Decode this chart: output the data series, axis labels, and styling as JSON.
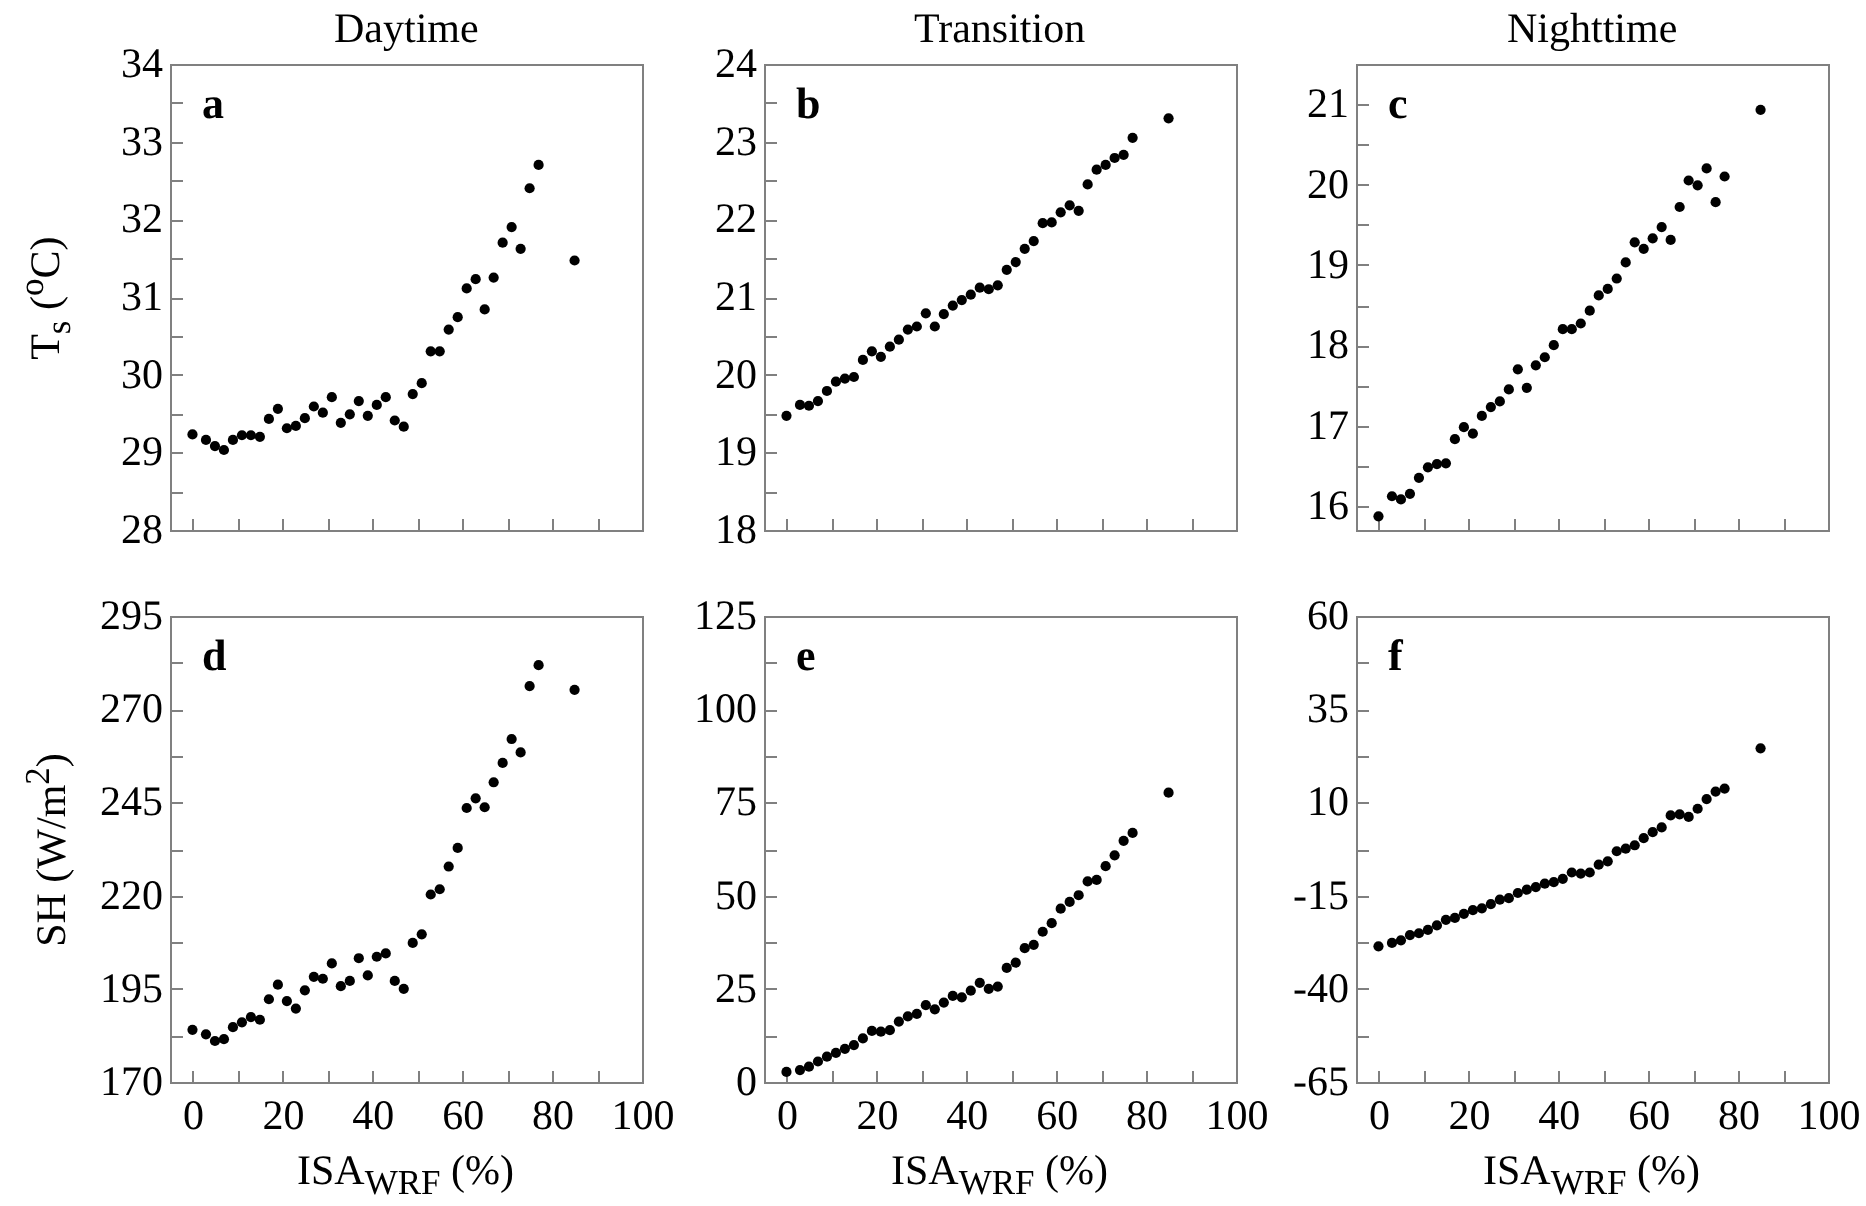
{
  "chart_data": [
    {
      "type": "scatter",
      "title": "Daytime",
      "ylabel": "T$_{s}$ ($^{o}$C)",
      "annotations": [
        "a"
      ],
      "marker": "circle",
      "tick_labels": "y",
      "xlim": [
        -5,
        100
      ],
      "xticks": [
        0,
        {
          "value": 10,
          "label": null
        },
        20,
        {
          "value": 30,
          "label": null
        },
        40,
        {
          "value": 50,
          "label": null
        },
        60,
        {
          "value": 70,
          "label": null
        },
        80,
        {
          "value": 90,
          "label": null
        },
        100
      ],
      "ylim": [
        28,
        34
      ],
      "yticks": [
        28,
        {
          "value": 28.5,
          "label": null
        },
        29,
        {
          "value": 29.5,
          "label": null
        },
        30,
        {
          "value": 30.5,
          "label": null
        },
        31,
        {
          "value": 31.5,
          "label": null
        },
        32,
        {
          "value": 32.5,
          "label": null
        },
        33,
        {
          "value": 33.5,
          "label": null
        },
        34
      ],
      "x": [
        0,
        3,
        5,
        7,
        9,
        11,
        13,
        15,
        17,
        19,
        21,
        23,
        25,
        27,
        29,
        31,
        33,
        35,
        37,
        39,
        41,
        43,
        45,
        47,
        49,
        51,
        53,
        55,
        57,
        59,
        61,
        63,
        65,
        67,
        69,
        71,
        73,
        75,
        77,
        85
      ],
      "series": [
        {
          "color": "#000000",
          "values": [
            29.23,
            29.16,
            29.08,
            29.03,
            29.16,
            29.22,
            29.22,
            29.2,
            29.43,
            29.56,
            29.31,
            29.34,
            29.44,
            29.59,
            29.51,
            29.71,
            29.38,
            29.49,
            29.66,
            29.47,
            29.61,
            29.71,
            29.41,
            29.33,
            29.75,
            29.89,
            30.3,
            30.3,
            30.58,
            30.74,
            31.11,
            31.23,
            30.84,
            31.25,
            31.7,
            31.9,
            31.62,
            32.4,
            32.7,
            31.47
          ]
        }
      ]
    },
    {
      "type": "scatter",
      "title": "Transition",
      "annotations": [
        "b"
      ],
      "marker": "circle",
      "tick_labels": "y",
      "xlim": [
        -5,
        100
      ],
      "xticks": [
        0,
        {
          "value": 10,
          "label": null
        },
        20,
        {
          "value": 30,
          "label": null
        },
        40,
        {
          "value": 50,
          "label": null
        },
        60,
        {
          "value": 70,
          "label": null
        },
        80,
        {
          "value": 90,
          "label": null
        },
        100
      ],
      "ylim": [
        18,
        24
      ],
      "yticks": [
        18,
        {
          "value": 18.5,
          "label": null
        },
        19,
        {
          "value": 19.5,
          "label": null
        },
        20,
        {
          "value": 20.5,
          "label": null
        },
        21,
        {
          "value": 21.5,
          "label": null
        },
        22,
        {
          "value": 22.5,
          "label": null
        },
        23,
        {
          "value": 23.5,
          "label": null
        },
        24
      ],
      "x": [
        0,
        3,
        5,
        7,
        9,
        11,
        13,
        15,
        17,
        19,
        21,
        23,
        25,
        27,
        29,
        31,
        33,
        35,
        37,
        39,
        41,
        43,
        45,
        47,
        49,
        51,
        53,
        55,
        57,
        59,
        61,
        63,
        65,
        67,
        69,
        71,
        73,
        75,
        77,
        85
      ],
      "series": [
        {
          "color": "#000000",
          "values": [
            19.47,
            19.61,
            19.6,
            19.66,
            19.79,
            19.91,
            19.95,
            19.97,
            20.19,
            20.3,
            20.23,
            20.36,
            20.45,
            20.58,
            20.62,
            20.79,
            20.62,
            20.78,
            20.89,
            20.96,
            21.03,
            21.12,
            21.1,
            21.15,
            21.35,
            21.45,
            21.62,
            21.72,
            21.95,
            21.96,
            22.09,
            22.18,
            22.11,
            22.45,
            22.64,
            22.7,
            22.79,
            22.83,
            23.05,
            23.3
          ]
        }
      ]
    },
    {
      "type": "scatter",
      "title": "Nighttime",
      "annotations": [
        "c"
      ],
      "marker": "circle",
      "tick_labels": "y",
      "xlim": [
        -5,
        100
      ],
      "xticks": [
        0,
        {
          "value": 10,
          "label": null
        },
        20,
        {
          "value": 30,
          "label": null
        },
        40,
        {
          "value": 50,
          "label": null
        },
        60,
        {
          "value": 70,
          "label": null
        },
        80,
        {
          "value": 90,
          "label": null
        },
        100
      ],
      "ylim": [
        15.7,
        21.5
      ],
      "yticks": [
        16,
        {
          "value": 16.5,
          "label": null
        },
        17,
        {
          "value": 17.5,
          "label": null
        },
        18,
        {
          "value": 18.5,
          "label": null
        },
        19,
        {
          "value": 19.5,
          "label": null
        },
        20,
        {
          "value": 20.5,
          "label": null
        },
        21
      ],
      "x": [
        0,
        3,
        5,
        7,
        9,
        11,
        13,
        15,
        17,
        19,
        21,
        23,
        25,
        27,
        29,
        31,
        33,
        35,
        37,
        39,
        41,
        43,
        45,
        47,
        49,
        51,
        53,
        55,
        57,
        59,
        61,
        63,
        65,
        67,
        69,
        71,
        73,
        75,
        77,
        85
      ],
      "series": [
        {
          "color": "#000000",
          "values": [
            15.87,
            16.12,
            16.08,
            16.15,
            16.35,
            16.48,
            16.52,
            16.53,
            16.83,
            16.98,
            16.9,
            17.12,
            17.23,
            17.3,
            17.45,
            17.7,
            17.47,
            17.75,
            17.85,
            18.0,
            18.2,
            18.2,
            18.27,
            18.43,
            18.62,
            18.7,
            18.83,
            19.03,
            19.28,
            19.2,
            19.33,
            19.47,
            19.31,
            19.72,
            20.05,
            19.99,
            20.2,
            19.78,
            20.1,
            20.93
          ]
        }
      ]
    },
    {
      "type": "scatter",
      "ylabel": "SH (W/m$^{2}$)",
      "xlabel": "ISA$_{WRF}$ (%)",
      "annotations": [
        "d"
      ],
      "marker": "circle",
      "xlim": [
        -5,
        100
      ],
      "xticks": [
        0,
        {
          "value": 10,
          "label": null
        },
        20,
        {
          "value": 30,
          "label": null
        },
        40,
        {
          "value": 50,
          "label": null
        },
        60,
        {
          "value": 70,
          "label": null
        },
        80,
        {
          "value": 90,
          "label": null
        },
        100
      ],
      "ylim": [
        170,
        295
      ],
      "yticks": [
        170,
        {
          "value": 182.5,
          "label": null
        },
        195,
        {
          "value": 207.5,
          "label": null
        },
        220,
        {
          "value": 232.5,
          "label": null
        },
        245,
        {
          "value": 257.5,
          "label": null
        },
        270,
        {
          "value": 282.5,
          "label": null
        },
        295
      ],
      "x": [
        0,
        3,
        5,
        7,
        9,
        11,
        13,
        15,
        17,
        19,
        21,
        23,
        25,
        27,
        29,
        31,
        33,
        35,
        37,
        39,
        41,
        43,
        45,
        47,
        49,
        51,
        53,
        55,
        57,
        59,
        61,
        63,
        65,
        67,
        69,
        71,
        73,
        75,
        77,
        85
      ],
      "series": [
        {
          "color": "#000000",
          "values": [
            184,
            182.8,
            181,
            181.5,
            184.7,
            186,
            187.4,
            186.7,
            192.2,
            196.1,
            191.7,
            189.7,
            194.6,
            198.2,
            197.7,
            201.8,
            195.7,
            197.1,
            203.2,
            198.6,
            203.6,
            204.5,
            197.1,
            195,
            207.3,
            209.6,
            220.3,
            221.7,
            227.8,
            232.8,
            243.5,
            246.1,
            243.7,
            250.4,
            255.6,
            262,
            258.4,
            276.2,
            281.8,
            275.2
          ]
        }
      ]
    },
    {
      "type": "scatter",
      "xlabel": "ISA$_{WRF}$ (%)",
      "annotations": [
        "e"
      ],
      "marker": "circle",
      "xlim": [
        -5,
        100
      ],
      "xticks": [
        0,
        {
          "value": 10,
          "label": null
        },
        20,
        {
          "value": 30,
          "label": null
        },
        40,
        {
          "value": 50,
          "label": null
        },
        60,
        {
          "value": 70,
          "label": null
        },
        80,
        {
          "value": 90,
          "label": null
        },
        100
      ],
      "ylim": [
        0,
        125
      ],
      "yticks": [
        0,
        {
          "value": 12.5,
          "label": null
        },
        25,
        {
          "value": 37.5,
          "label": null
        },
        50,
        {
          "value": 62.5,
          "label": null
        },
        75,
        {
          "value": 87.5,
          "label": null
        },
        100,
        {
          "value": 112.5,
          "label": null
        },
        125
      ],
      "x": [
        0,
        3,
        5,
        7,
        9,
        11,
        13,
        15,
        17,
        19,
        21,
        23,
        25,
        27,
        29,
        31,
        33,
        35,
        37,
        39,
        41,
        43,
        45,
        47,
        49,
        51,
        53,
        55,
        57,
        59,
        61,
        63,
        65,
        67,
        69,
        71,
        73,
        75,
        77,
        85
      ],
      "series": [
        {
          "color": "#000000",
          "values": [
            2.7,
            3.2,
            4.1,
            5.5,
            6.8,
            7.8,
            8.9,
            9.9,
            11.7,
            13.7,
            13.5,
            13.9,
            16.2,
            17.6,
            18.3,
            20.6,
            19.5,
            21.3,
            23.1,
            22.7,
            24.5,
            26.6,
            25,
            25.6,
            30.6,
            32,
            35.9,
            36.8,
            40.3,
            42.6,
            46.5,
            48.3,
            50.1,
            53.8,
            54.2,
            57.9,
            60.8,
            64.7,
            66.8,
            77.6
          ]
        }
      ]
    },
    {
      "type": "scatter",
      "xlabel": "ISA$_{WRF}$ (%)",
      "annotations": [
        "f"
      ],
      "marker": "circle",
      "xlim": [
        -5,
        100
      ],
      "xticks": [
        0,
        {
          "value": 10,
          "label": null
        },
        20,
        {
          "value": 30,
          "label": null
        },
        40,
        {
          "value": 50,
          "label": null
        },
        60,
        {
          "value": 70,
          "label": null
        },
        80,
        {
          "value": 90,
          "label": null
        },
        100
      ],
      "ylim": [
        -65,
        60
      ],
      "yticks": [
        -65,
        {
          "value": -52.5,
          "label": null
        },
        -40,
        {
          "value": -27.5,
          "label": null
        },
        -15,
        {
          "value": -2.5,
          "label": null
        },
        10,
        {
          "value": 22.5,
          "label": null
        },
        35,
        {
          "value": 47.5,
          "label": null
        },
        60
      ],
      "x": [
        0,
        3,
        5,
        7,
        9,
        11,
        13,
        15,
        17,
        19,
        21,
        23,
        25,
        27,
        29,
        31,
        33,
        35,
        37,
        39,
        41,
        43,
        45,
        47,
        49,
        51,
        53,
        55,
        57,
        59,
        61,
        63,
        65,
        67,
        69,
        71,
        73,
        75,
        77,
        85
      ],
      "series": [
        {
          "color": "#000000",
          "values": [
            -28.6,
            -27.7,
            -27,
            -25.6,
            -25.1,
            -24.2,
            -23,
            -21.5,
            -21,
            -19.9,
            -18.9,
            -18.4,
            -17.3,
            -16.1,
            -15.7,
            -14.3,
            -13.4,
            -12.7,
            -11.8,
            -11.4,
            -10.5,
            -8.8,
            -9.1,
            -8.8,
            -6.7,
            -5.8,
            -3.1,
            -2.4,
            -1.5,
            0.4,
            2,
            3.3,
            6.5,
            6.8,
            6.1,
            8.3,
            10.9,
            12.9,
            13.7,
            24.5
          ]
        }
      ]
    }
  ]
}
